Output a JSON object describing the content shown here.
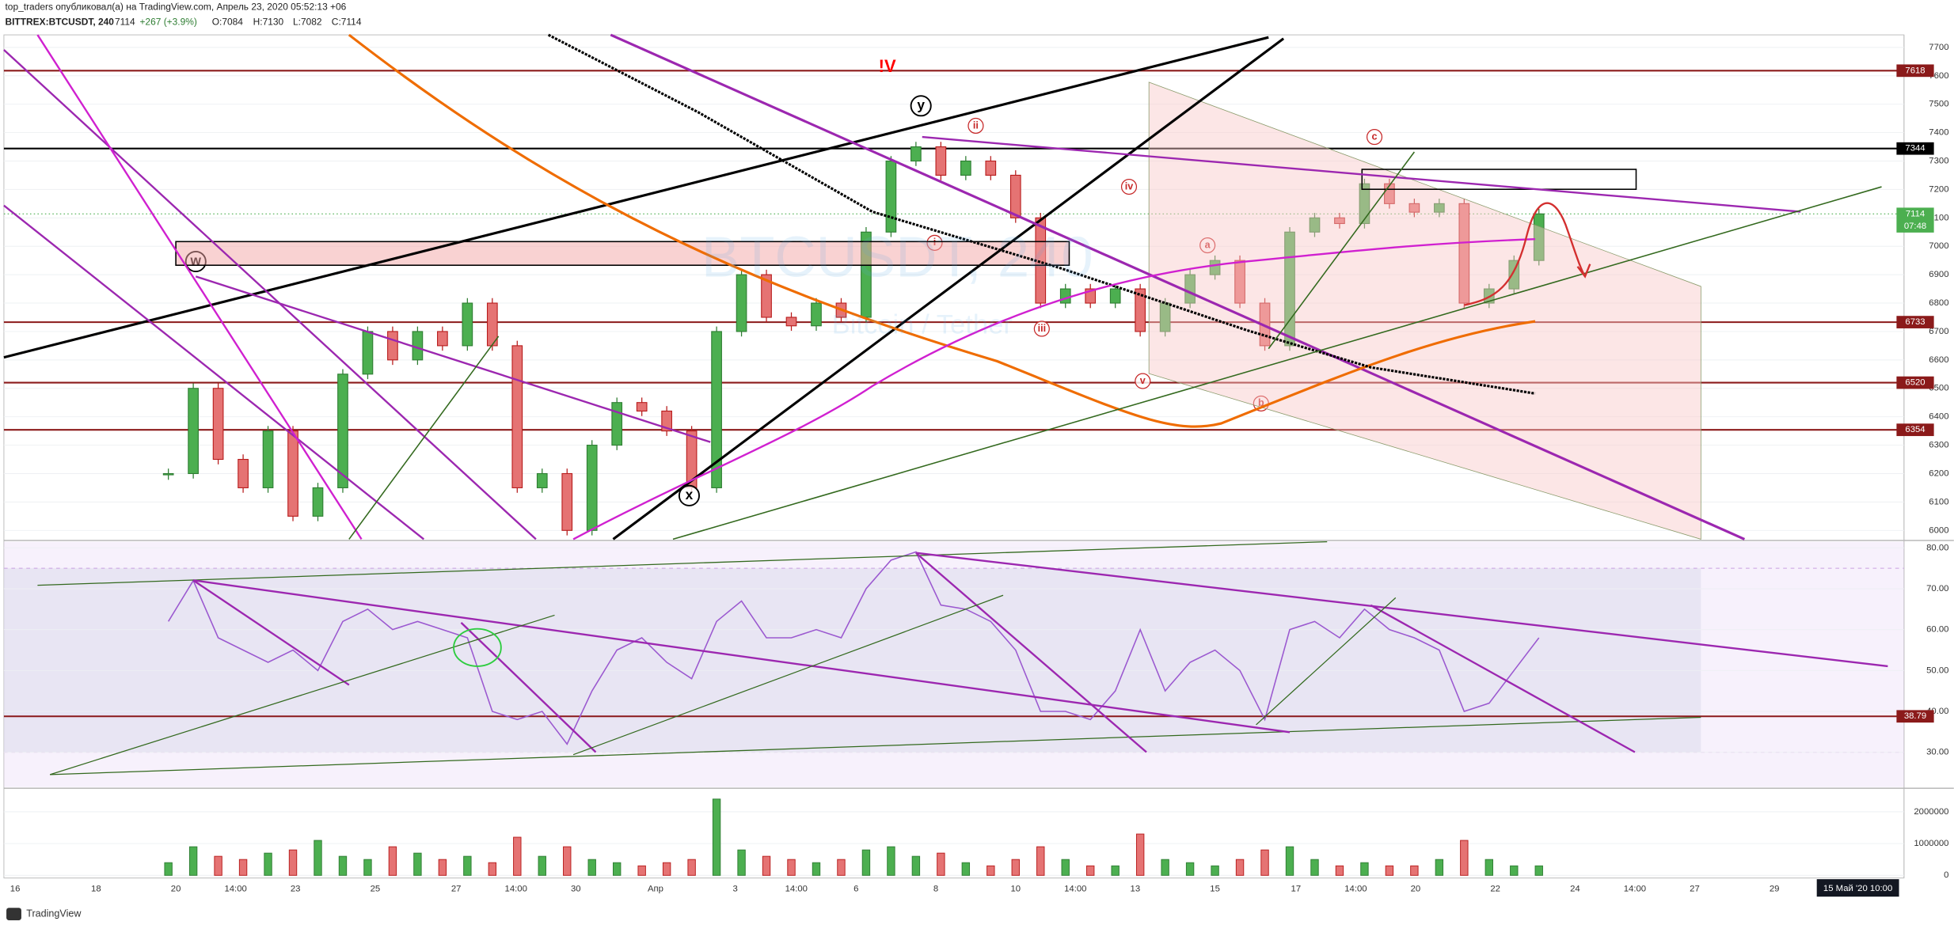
{
  "header": {
    "line1": "top_traders опубликовал(а) на TradingView.com, Апрель 23, 2020 05:52:13 +06",
    "symbol": "BITTREX:BTCUSDT, 240",
    "last": "7114",
    "change": "+267 (+3.9%)",
    "ohlc": [
      "O:7084",
      "H:7130",
      "L:7082",
      "C:7114"
    ]
  },
  "watermark": {
    "symbol": "BTCUSDT, 240",
    "name": "Bitcoin / Tether"
  },
  "chart_data": [
    {
      "type": "candlestick",
      "colors": {
        "up": "#2e7d32",
        "down": "#b71c1c"
      },
      "values": [
        6200,
        6500,
        6250,
        6150,
        6350,
        6050,
        6150,
        6550,
        6700,
        6600,
        6700,
        6650,
        6800,
        6650,
        6150,
        6200,
        6000,
        6300,
        6450,
        6420,
        6350,
        6150,
        6700,
        6900,
        6750,
        6720,
        6800,
        6750,
        7050,
        7300,
        7350,
        7250,
        7300,
        7250,
        7100,
        6800,
        6850,
        6800,
        6850,
        6700,
        6800,
        6900,
        6950,
        6800,
        6650,
        7050,
        7100,
        7080,
        7220,
        7150,
        7120,
        7150,
        6800,
        6850,
        6950,
        7114
      ],
      "ylim": [
        5969,
        7744
      ],
      "yticks": [
        6000,
        6100,
        6200,
        6300,
        6400,
        6500,
        6600,
        6700,
        6800,
        6900,
        7000,
        7100,
        7200,
        7300,
        7400,
        7500,
        7600,
        7700
      ],
      "grid": true,
      "levels": [
        {
          "value": 7618,
          "color": "#8b1a1a"
        },
        {
          "value": 7344,
          "color": "#000000"
        },
        {
          "value": 6733,
          "color": "#8b1a1a"
        },
        {
          "value": 6520,
          "color": "#8b1a1a"
        },
        {
          "value": 6354,
          "color": "#8b1a1a"
        }
      ],
      "last_price": {
        "value": 7114,
        "countdown": "07:48",
        "color": "#4caf50"
      },
      "annotations": [
        "!V",
        "w",
        "x",
        "y",
        "ii",
        "iv",
        "i",
        "iii",
        "v",
        "a",
        "b",
        "c"
      ]
    },
    {
      "type": "line",
      "color": "#9b59d0",
      "values": [
        62,
        72,
        58,
        55,
        52,
        55,
        50,
        62,
        65,
        60,
        62,
        60,
        58,
        40,
        38,
        40,
        32,
        45,
        55,
        58,
        52,
        48,
        62,
        67,
        58,
        58,
        60,
        58,
        70,
        77,
        79,
        66,
        65,
        62,
        55,
        40,
        40,
        38,
        45,
        60,
        45,
        52,
        55,
        50,
        38,
        60,
        62,
        58,
        65,
        60,
        58,
        55,
        40,
        42,
        50,
        58
      ],
      "ylim": [
        21.5,
        81.5
      ],
      "yticks": [
        {
          "value": 30,
          "label": "30.00"
        },
        {
          "value": 40,
          "label": "40.00"
        },
        {
          "value": 50,
          "label": "50.00"
        },
        {
          "value": 60,
          "label": "60.00"
        },
        {
          "value": 70,
          "label": "70.00"
        },
        {
          "value": 80,
          "label": "80.00"
        }
      ],
      "grid": true,
      "band": [
        30,
        75
      ],
      "levels": [
        {
          "value": 38.79,
          "color": "#8b1a1a"
        }
      ]
    },
    {
      "type": "bar",
      "colors": {
        "up": "#2e7d32",
        "down": "#b71c1c"
      },
      "values": [
        400000,
        900000,
        600000,
        500000,
        700000,
        800000,
        1100000,
        600000,
        500000,
        900000,
        700000,
        500000,
        600000,
        400000,
        1200000,
        600000,
        900000,
        500000,
        400000,
        300000,
        400000,
        500000,
        2400000,
        800000,
        600000,
        500000,
        400000,
        500000,
        800000,
        900000,
        600000,
        700000,
        400000,
        300000,
        500000,
        900000,
        500000,
        300000,
        300000,
        1300000,
        500000,
        400000,
        300000,
        500000,
        800000,
        900000,
        500000,
        300000,
        400000,
        300000,
        300000,
        500000,
        1100000,
        500000,
        300000,
        300000
      ],
      "ylim": [
        -80000,
        2700000
      ],
      "yticks": [
        0,
        1000000,
        2000000
      ],
      "grid": true
    }
  ],
  "x_axis": {
    "labels": [
      "16",
      "18",
      "20",
      "14:00",
      "23",
      "25",
      "27",
      "14:00",
      "30",
      "Апр",
      "3",
      "14:00",
      "6",
      "8",
      "10",
      "14:00",
      "13",
      "15",
      "17",
      "14:00",
      "20",
      "22",
      "24",
      "14:00",
      "27",
      "29"
    ],
    "cursor_label": "15 Май '20  10:00"
  },
  "footer": "TradingView"
}
